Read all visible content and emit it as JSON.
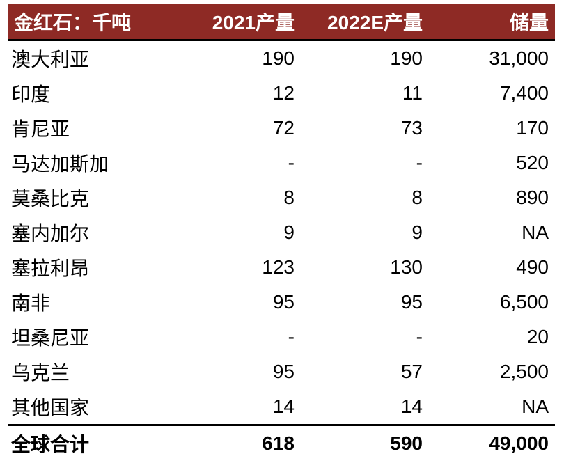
{
  "styles": {
    "header_bg": "#8E2A25",
    "header_text": "#FFFFFF",
    "body_text": "#000000",
    "rule_line": "#000000"
  },
  "chart_data": {
    "type": "table",
    "title": "金红石：千吨",
    "unit": "千吨",
    "columns": [
      "金红石：千吨",
      "2021产量",
      "2022E产量",
      "储量"
    ],
    "rows": [
      [
        "澳大利亚",
        "190",
        "190",
        "31,000"
      ],
      [
        "印度",
        "12",
        "11",
        "7,400"
      ],
      [
        "肯尼亚",
        "72",
        "73",
        "170"
      ],
      [
        "马达加斯加",
        "-",
        "-",
        "520"
      ],
      [
        "莫桑比克",
        "8",
        "8",
        "890"
      ],
      [
        "塞内加尔",
        "9",
        "9",
        "NA"
      ],
      [
        "塞拉利昂",
        "123",
        "130",
        "490"
      ],
      [
        "南非",
        "95",
        "95",
        "6,500"
      ],
      [
        "坦桑尼亚",
        "-",
        "-",
        "20"
      ],
      [
        "乌克兰",
        "95",
        "57",
        "2,500"
      ],
      [
        "其他国家",
        "14",
        "14",
        "NA"
      ]
    ],
    "total_row": [
      "全球合计",
      "618",
      "590",
      "49,000"
    ]
  }
}
